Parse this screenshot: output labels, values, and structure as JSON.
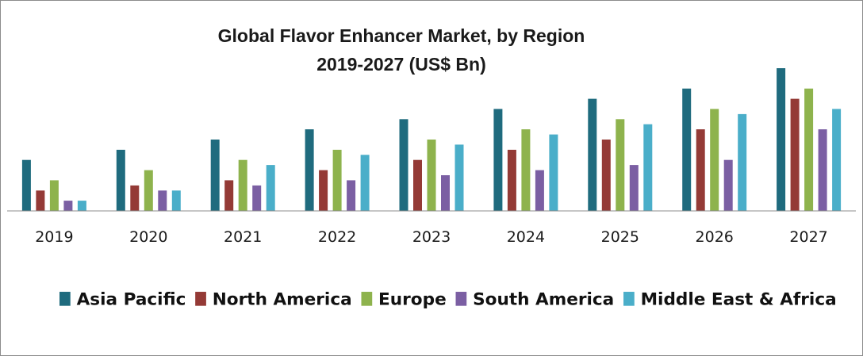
{
  "chart_data": {
    "type": "bar",
    "title": "Global Flavor Enhancer Market, by Region",
    "subtitle": "2019-2027 (US$ Bn)",
    "categories": [
      "2019",
      "2020",
      "2021",
      "2022",
      "2023",
      "2024",
      "2025",
      "2026",
      "2027"
    ],
    "series": [
      {
        "name": "Asia Pacific",
        "color": "#1f6b7e",
        "values": [
          5.0,
          6.0,
          7.0,
          8.0,
          9.0,
          10.0,
          11.0,
          12.0,
          14.0
        ]
      },
      {
        "name": "North America",
        "color": "#943a36",
        "values": [
          2.0,
          2.5,
          3.0,
          4.0,
          5.0,
          6.0,
          7.0,
          8.0,
          11.0
        ]
      },
      {
        "name": "Europe",
        "color": "#8eb34d",
        "values": [
          3.0,
          4.0,
          5.0,
          6.0,
          7.0,
          8.0,
          9.0,
          10.0,
          12.0
        ]
      },
      {
        "name": "South America",
        "color": "#7b5fa3",
        "values": [
          1.0,
          2.0,
          2.5,
          3.0,
          3.5,
          4.0,
          4.5,
          5.0,
          8.0
        ]
      },
      {
        "name": "Middle East & Africa",
        "color": "#4aaec9",
        "values": [
          1.0,
          2.0,
          4.5,
          5.5,
          6.5,
          7.5,
          8.5,
          9.5,
          10.0
        ]
      }
    ],
    "xlabel": "",
    "ylabel": "",
    "ylim": [
      0,
      14.5
    ],
    "grid": false,
    "y_axis_labels_shown": false,
    "legend_position": "bottom"
  }
}
